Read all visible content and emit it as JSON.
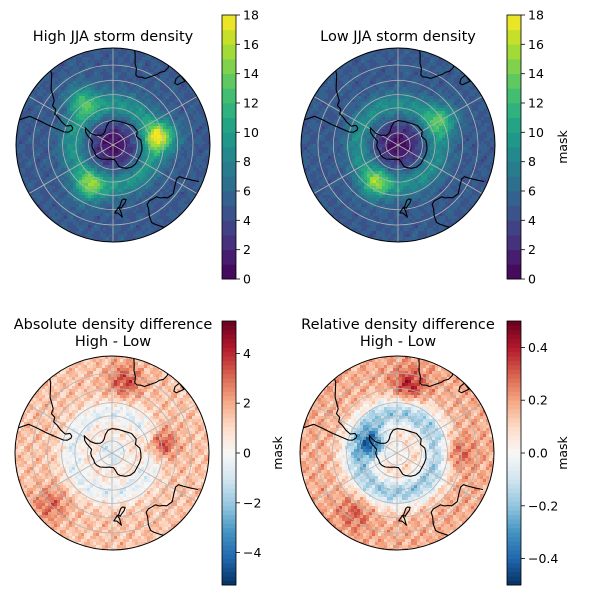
{
  "chart_data": [
    {
      "type": "heatmap",
      "projection": "south-polar-stereographic",
      "title": "High JJA storm density",
      "subtitle": "",
      "colormap": "viridis",
      "colorbar": {
        "ticks": [
          0,
          2,
          4,
          6,
          8,
          10,
          12,
          14,
          16,
          18
        ],
        "range": [
          0,
          18
        ],
        "levels": 18,
        "label": ""
      },
      "field": {
        "background": 5,
        "pole_value": 0.5,
        "annulus": {
          "center_value": 9.5,
          "ring_lat_deg": -58,
          "width_deg": 10
        },
        "hotspots": [
          {
            "lon_deg": 80,
            "lat_deg": -52,
            "value": 15
          },
          {
            "lon_deg": -150,
            "lat_deg": -52,
            "value": 12
          },
          {
            "lon_deg": -35,
            "lat_deg": -48,
            "value": 11
          }
        ]
      }
    },
    {
      "type": "heatmap",
      "projection": "south-polar-stereographic",
      "title": "Low JJA storm density",
      "subtitle": "",
      "colormap": "viridis",
      "colorbar": {
        "ticks": [
          0,
          2,
          4,
          6,
          8,
          10,
          12,
          14,
          16,
          18
        ],
        "range": [
          0,
          18
        ],
        "levels": 18,
        "label": "mask"
      },
      "field": {
        "background": 5,
        "pole_value": 0.5,
        "annulus": {
          "center_value": 9,
          "ring_lat_deg": -58,
          "width_deg": 10
        },
        "hotspots": [
          {
            "lon_deg": -150,
            "lat_deg": -55,
            "value": 12
          },
          {
            "lon_deg": 60,
            "lat_deg": -50,
            "value": 11
          }
        ]
      }
    },
    {
      "type": "heatmap",
      "projection": "south-polar-stereographic",
      "title": "Absolute density difference",
      "subtitle": "High - Low",
      "colormap": "RdBu_r",
      "colorbar": {
        "ticks": [
          -4,
          -2,
          0,
          2,
          4
        ],
        "range": [
          -5.3,
          5.3
        ],
        "label": "mask"
      },
      "field": {
        "background": 1.5,
        "pole_value": -0.8,
        "annulus": {
          "center_value": -0.5,
          "ring_lat_deg": -58,
          "width_deg": 10
        },
        "hotspots": [
          {
            "lon_deg": 80,
            "lat_deg": -52,
            "value": 4.5
          },
          {
            "lon_deg": 10,
            "lat_deg": -35,
            "value": 3.5
          },
          {
            "lon_deg": -130,
            "lat_deg": -30,
            "value": 3
          }
        ]
      }
    },
    {
      "type": "heatmap",
      "projection": "south-polar-stereographic",
      "title": "Relative density difference",
      "subtitle": "High - Low",
      "colormap": "RdBu_r",
      "colorbar": {
        "ticks": [
          -0.4,
          -0.2,
          0.0,
          0.2,
          0.4
        ],
        "range": [
          -0.5,
          0.5
        ],
        "label": "mask"
      },
      "field": {
        "background": 0.18,
        "pole_value": 0.0,
        "annulus": {
          "center_value": -0.18,
          "ring_lat_deg": -58,
          "width_deg": 12
        },
        "hotspots": [
          {
            "lon_deg": 10,
            "lat_deg": -38,
            "value": 0.4
          },
          {
            "lon_deg": 90,
            "lat_deg": -45,
            "value": 0.35
          },
          {
            "lon_deg": -145,
            "lat_deg": -35,
            "value": 0.3
          },
          {
            "lon_deg": -70,
            "lat_deg": -72,
            "value": -0.4
          }
        ]
      }
    }
  ]
}
